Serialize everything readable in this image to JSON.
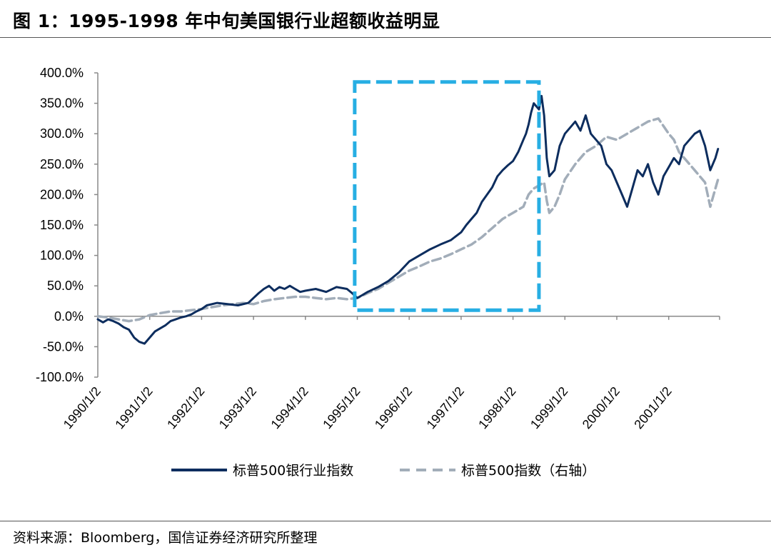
{
  "header": {
    "title": "图 1：1995-1998 年中旬美国银行业超额收益明显"
  },
  "footer": {
    "source": "资料来源：Bloomberg，国信证券经济研究所整理"
  },
  "colors": {
    "bank_series": "#0d2d5e",
    "sp500_series": "#a2adb9",
    "highlight_box": "#27aee3"
  },
  "chart_data": {
    "type": "line",
    "title": "图 1：1995-1998 年中旬美国银行业超额收益明显",
    "xlabel": "",
    "ylabel": "",
    "x_ticks": [
      "1990/1/2",
      "1991/1/2",
      "1992/1/2",
      "1993/1/2",
      "1994/1/2",
      "1995/1/2",
      "1996/1/2",
      "1997/1/2",
      "1998/1/2",
      "1999/1/2",
      "2000/1/2",
      "2001/1/2"
    ],
    "y_ticks": [
      "400.0%",
      "350.0%",
      "300.0%",
      "250.0%",
      "200.0%",
      "150.0%",
      "100.0%",
      "50.0%",
      "0.0%",
      "-50.0%",
      "-100.0%"
    ],
    "ylim": [
      -100,
      400
    ],
    "xlim": [
      1990.0,
      2002.0
    ],
    "legend_position": "bottom",
    "grid": false,
    "series": [
      {
        "name": "标普500银行业指数",
        "style": "solid",
        "x": [
          1990.0,
          1990.1,
          1990.2,
          1990.3,
          1990.4,
          1990.5,
          1990.6,
          1990.7,
          1990.8,
          1990.9,
          1991.0,
          1991.1,
          1991.2,
          1991.3,
          1991.4,
          1991.5,
          1991.6,
          1991.7,
          1991.8,
          1991.9,
          1992.0,
          1992.1,
          1992.3,
          1992.5,
          1992.7,
          1992.9,
          1993.0,
          1993.1,
          1993.2,
          1993.3,
          1993.4,
          1993.5,
          1993.6,
          1993.7,
          1993.8,
          1993.9,
          1994.0,
          1994.2,
          1994.4,
          1994.6,
          1994.8,
          1994.9,
          1995.0,
          1995.1,
          1995.2,
          1995.4,
          1995.6,
          1995.8,
          1996.0,
          1996.2,
          1996.4,
          1996.6,
          1996.8,
          1997.0,
          1997.1,
          1997.2,
          1997.3,
          1997.4,
          1997.5,
          1997.6,
          1997.7,
          1997.8,
          1997.9,
          1998.0,
          1998.1,
          1998.2,
          1998.25,
          1998.3,
          1998.35,
          1998.4,
          1998.45,
          1998.5,
          1998.55,
          1998.6,
          1998.65,
          1998.7,
          1998.8,
          1998.9,
          1999.0,
          1999.1,
          1999.2,
          1999.3,
          1999.4,
          1999.5,
          1999.6,
          1999.7,
          1999.8,
          1999.9,
          2000.0,
          2000.1,
          2000.2,
          2000.3,
          2000.4,
          2000.5,
          2000.6,
          2000.7,
          2000.8,
          2000.9,
          2001.0,
          2001.1,
          2001.2,
          2001.3,
          2001.4,
          2001.5,
          2001.6,
          2001.7,
          2001.8,
          2001.9,
          2001.95
        ],
        "y": [
          -5,
          -10,
          -5,
          -8,
          -12,
          -18,
          -22,
          -35,
          -42,
          -45,
          -35,
          -25,
          -20,
          -15,
          -8,
          -5,
          -2,
          0,
          3,
          8,
          12,
          18,
          22,
          20,
          18,
          22,
          30,
          38,
          45,
          50,
          42,
          48,
          45,
          50,
          45,
          40,
          42,
          45,
          40,
          48,
          45,
          38,
          30,
          35,
          40,
          48,
          58,
          72,
          90,
          100,
          110,
          118,
          125,
          138,
          150,
          160,
          170,
          188,
          200,
          212,
          230,
          240,
          248,
          255,
          270,
          290,
          300,
          315,
          335,
          350,
          345,
          340,
          362,
          330,
          260,
          230,
          240,
          280,
          300,
          310,
          320,
          305,
          330,
          300,
          290,
          280,
          250,
          240,
          220,
          200,
          180,
          210,
          240,
          230,
          250,
          220,
          200,
          230,
          245,
          260,
          250,
          280,
          290,
          300,
          305,
          280,
          240,
          260,
          275
        ]
      },
      {
        "name": "标普500指数（右轴）",
        "style": "dashed",
        "x": [
          1990.0,
          1990.2,
          1990.4,
          1990.6,
          1990.8,
          1991.0,
          1991.2,
          1991.4,
          1991.6,
          1991.8,
          1992.0,
          1992.2,
          1992.4,
          1992.6,
          1992.8,
          1993.0,
          1993.2,
          1993.4,
          1993.6,
          1993.8,
          1994.0,
          1994.2,
          1994.4,
          1994.6,
          1994.8,
          1995.0,
          1995.2,
          1995.4,
          1995.6,
          1995.8,
          1996.0,
          1996.2,
          1996.4,
          1996.6,
          1996.8,
          1997.0,
          1997.2,
          1997.4,
          1997.6,
          1997.8,
          1998.0,
          1998.2,
          1998.3,
          1998.4,
          1998.5,
          1998.6,
          1998.65,
          1998.7,
          1998.8,
          1998.9,
          1999.0,
          1999.2,
          1999.4,
          1999.6,
          1999.8,
          2000.0,
          2000.2,
          2000.4,
          2000.6,
          2000.8,
          2001.0,
          2001.1,
          2001.2,
          2001.3,
          2001.4,
          2001.5,
          2001.6,
          2001.7,
          2001.8,
          2001.9,
          2001.95
        ],
        "y": [
          0,
          -2,
          -5,
          -8,
          -5,
          2,
          5,
          8,
          8,
          10,
          12,
          15,
          18,
          20,
          22,
          20,
          25,
          28,
          30,
          32,
          32,
          30,
          28,
          30,
          28,
          30,
          38,
          45,
          55,
          65,
          75,
          82,
          90,
          95,
          102,
          110,
          118,
          130,
          145,
          160,
          170,
          180,
          200,
          210,
          215,
          220,
          190,
          170,
          180,
          200,
          225,
          250,
          270,
          280,
          295,
          290,
          300,
          310,
          320,
          325,
          300,
          290,
          270,
          260,
          250,
          240,
          230,
          220,
          180,
          210,
          225
        ]
      }
    ],
    "highlight_box": {
      "x_start": 1994.95,
      "x_end": 1998.5,
      "y_bottom": 10,
      "y_top": 385
    }
  }
}
